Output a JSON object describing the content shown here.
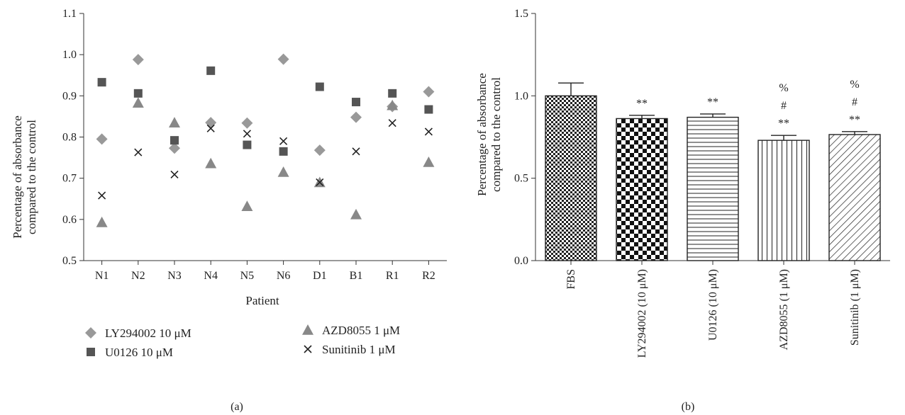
{
  "chart_data": [
    {
      "type": "scatter",
      "panel_label": "(a)",
      "xlabel": "Patient",
      "ylabel_lines": [
        "Percentage of absorbance",
        "compared to the control"
      ],
      "categories": [
        "N1",
        "N2",
        "N3",
        "N4",
        "N5",
        "N6",
        "D1",
        "B1",
        "R1",
        "R2"
      ],
      "ylim": [
        0.5,
        1.1
      ],
      "yticks": [
        "0.5",
        "0.6",
        "0.7",
        "0.8",
        "0.9",
        "1.0",
        "1.1"
      ],
      "grid": false,
      "legend_position": "bottom",
      "series": [
        {
          "name": "LY294002 10 μM",
          "marker": "diamond",
          "color": "#999999",
          "values": [
            0.795,
            0.988,
            0.773,
            0.835,
            0.834,
            0.989,
            0.768,
            0.848,
            0.874,
            0.91
          ]
        },
        {
          "name": "U0126 10 μM",
          "marker": "square",
          "color": "#555555",
          "values": [
            0.933,
            0.906,
            0.792,
            0.961,
            0.781,
            0.765,
            0.922,
            0.885,
            0.906,
            0.867
          ]
        },
        {
          "name": "AZD8055 1 μM",
          "marker": "triangle",
          "color": "#888888",
          "values": [
            0.593,
            0.883,
            0.835,
            0.736,
            0.632,
            0.715,
            0.69,
            0.612,
            0.877,
            0.739
          ]
        },
        {
          "name": "Sunitinib 1 μM",
          "marker": "cross",
          "color": "#222222",
          "values": [
            0.658,
            0.763,
            0.709,
            0.821,
            0.808,
            0.79,
            0.69,
            0.765,
            0.834,
            0.813
          ]
        }
      ]
    },
    {
      "type": "bar",
      "panel_label": "(b)",
      "ylabel_lines": [
        "Percentage of absorbance",
        "compared to the control"
      ],
      "categories": [
        "FBS",
        "LY294002 (10 μM)",
        "U0126 (10 μM)",
        "AZD8055 (1 μM)",
        "Sunitinib (1 μM)"
      ],
      "values": [
        1.0,
        0.862,
        0.87,
        0.73,
        0.765
      ],
      "errors": [
        0.078,
        0.02,
        0.02,
        0.03,
        0.018
      ],
      "patterns": [
        "dense-check",
        "checker",
        "horizontal-lines",
        "vertical-lines",
        "diagonal-lines"
      ],
      "annotations": [
        [],
        [
          "**"
        ],
        [
          "**"
        ],
        [
          "**",
          "#",
          "%"
        ],
        [
          "**",
          "#",
          "%"
        ]
      ],
      "ylim": [
        0.0,
        1.5
      ],
      "yticks": [
        "0.0",
        "0.5",
        "1.0",
        "1.5"
      ],
      "grid": false
    }
  ]
}
